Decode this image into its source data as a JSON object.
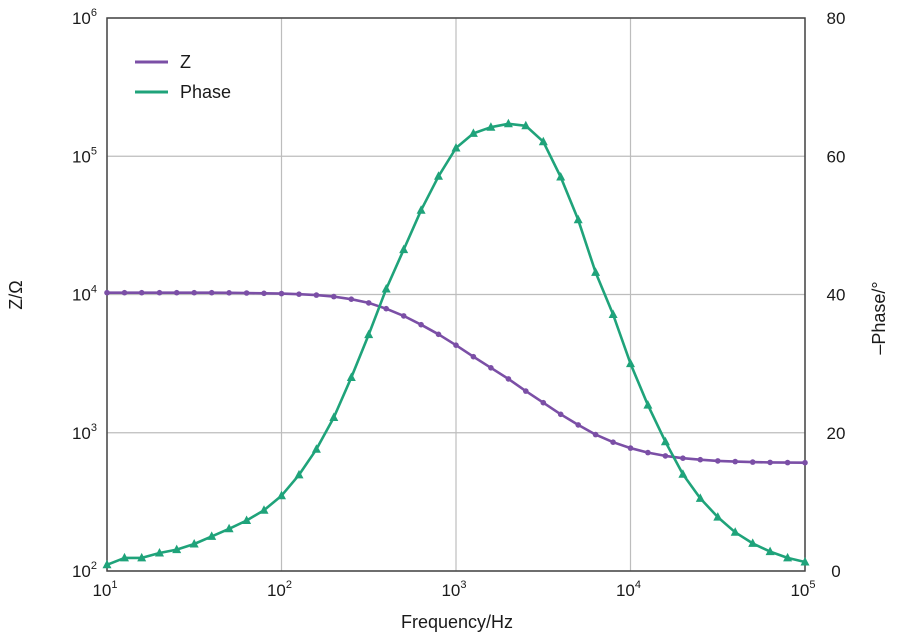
{
  "chart_data": {
    "type": "line",
    "title": "",
    "xlabel": "Frequency/Hz",
    "ylabel_left": "Z/Ω",
    "ylabel_right": "–Phase/°",
    "x_scale": "log",
    "y_left_scale": "log",
    "xlim": [
      10,
      100000
    ],
    "ylim_left": [
      100,
      1000000
    ],
    "ylim_right": [
      0,
      80
    ],
    "x_ticks": [
      {
        "value": 10,
        "base": "10",
        "exp": "1"
      },
      {
        "value": 100,
        "base": "10",
        "exp": "2"
      },
      {
        "value": 1000,
        "base": "10",
        "exp": "3"
      },
      {
        "value": 10000,
        "base": "10",
        "exp": "4"
      },
      {
        "value": 100000,
        "base": "10",
        "exp": "5"
      }
    ],
    "y_left_ticks": [
      {
        "value": 100,
        "base": "10",
        "exp": "2"
      },
      {
        "value": 1000,
        "base": "10",
        "exp": "3"
      },
      {
        "value": 10000,
        "base": "10",
        "exp": "4"
      },
      {
        "value": 100000,
        "base": "10",
        "exp": "5"
      },
      {
        "value": 1000000,
        "base": "10",
        "exp": "6"
      }
    ],
    "y_right_ticks": [
      "0",
      "20",
      "40",
      "60",
      "80"
    ],
    "grid": true,
    "legend_position": "top-left",
    "series": [
      {
        "name": "Z",
        "axis": "left",
        "color": "#7b4fa6",
        "marker": "circle",
        "x": [
          10,
          12.6,
          15.8,
          20,
          25.1,
          31.6,
          39.8,
          50.1,
          63.1,
          79.4,
          100,
          125.9,
          158.5,
          199.5,
          251.2,
          316.2,
          398.1,
          501.2,
          631,
          794.3,
          1000,
          1258.9,
          1584.9,
          1995.3,
          2511.9,
          3162.3,
          3981.1,
          5011.9,
          6309.6,
          7943.3,
          10000,
          12589,
          15849,
          19953,
          25119,
          31623,
          39811,
          50119,
          63096,
          79433,
          100000
        ],
        "y": [
          10300,
          10300,
          10300,
          10300,
          10300,
          10300,
          10300,
          10280,
          10250,
          10200,
          10150,
          10050,
          9900,
          9650,
          9250,
          8700,
          7900,
          7000,
          6050,
          5150,
          4300,
          3550,
          2950,
          2450,
          2000,
          1650,
          1360,
          1140,
          970,
          855,
          775,
          718,
          680,
          655,
          638,
          626,
          618,
          613,
          610,
          608,
          607
        ]
      },
      {
        "name": "Phase",
        "axis": "right",
        "color": "#1fa37a",
        "marker": "triangle",
        "x": [
          10,
          12.6,
          15.8,
          20,
          25.1,
          31.6,
          39.8,
          50.1,
          63.1,
          79.4,
          100,
          125.9,
          158.5,
          199.5,
          251.2,
          316.2,
          398.1,
          501.2,
          631,
          794.3,
          1000,
          1258.9,
          1584.9,
          1995.3,
          2511.9,
          3162.3,
          3981.1,
          5011.9,
          6309.6,
          7943.3,
          10000,
          12589,
          15849,
          19953,
          25119,
          31623,
          39811,
          50119,
          63096,
          79433,
          100000
        ],
        "y": [
          0.9,
          1.9,
          1.9,
          2.6,
          3.1,
          3.9,
          5.0,
          6.1,
          7.3,
          8.8,
          10.9,
          13.9,
          17.6,
          22.2,
          28.0,
          34.2,
          40.8,
          46.5,
          52.2,
          57.1,
          61.2,
          63.3,
          64.2,
          64.7,
          64.4,
          62.1,
          57.0,
          50.8,
          43.2,
          37.1,
          30.0,
          24.0,
          18.7,
          14.0,
          10.5,
          7.8,
          5.6,
          4.0,
          2.8,
          1.9,
          1.3
        ]
      }
    ]
  }
}
